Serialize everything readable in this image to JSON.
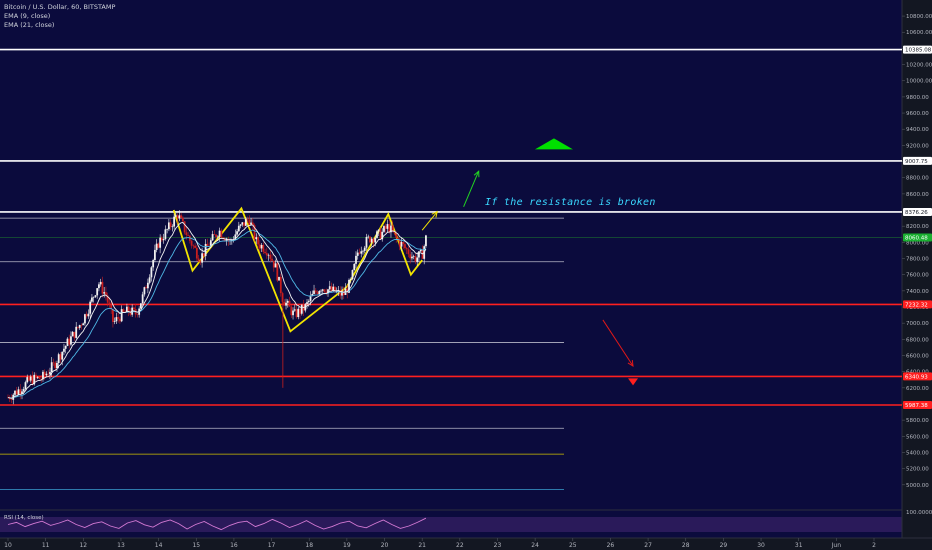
{
  "header": {
    "symbol": "Bitcoin / U.S. Dollar, 60, BITSTAMP",
    "ema1": "EMA (9, close)",
    "ema2": "EMA (21, close)"
  },
  "annotation": "If the resistance is broken",
  "rsi_label": "RSI (14, close)",
  "colors": {
    "background": "#131722",
    "plot": "#0b0b3d",
    "up": "#f0f0f0",
    "down": "#c81e1e",
    "ema9": "#f3f3f3",
    "ema21": "#4fb8e6",
    "pattern": "#f2e400",
    "support": "#ff1f1f",
    "resistance": "#ffffff",
    "green_arrow": "#00e000",
    "rsi_line": "#d47ad4",
    "rsi_panel": "#2a1a5a"
  },
  "chart_data": {
    "type": "candlestick",
    "title": "Bitcoin / U.S. Dollar, 60, BITSTAMP",
    "ylim": [
      4750,
      10900
    ],
    "y_ticks": [
      5000,
      5200,
      5400,
      5600,
      5800,
      6000,
      6200,
      6400,
      6600,
      6800,
      7000,
      7200,
      7400,
      7600,
      7800,
      8000,
      8200,
      8400,
      8600,
      8800,
      9000,
      9200,
      9400,
      9600,
      9800,
      10000,
      10200,
      10400,
      10600,
      10800
    ],
    "y_tick_labels": [
      "5000.00",
      "5200.00",
      "5400.00",
      "5600.00",
      "5800.00",
      "6000.00",
      "6200.00",
      "6400.00",
      "6600.00",
      "6800.00",
      "7000.00",
      "7200.00",
      "7400.00",
      "7600.00",
      "7800.00",
      "8000.00",
      "8200.00",
      "8400.00",
      "8600.00",
      "8800.00",
      "9000.00",
      "9200.00",
      "9400.00",
      "9600.00",
      "9800.00",
      "10000.00",
      "10200.00",
      "10400.00",
      "10600.00",
      "10800.00"
    ],
    "x_ticks": [
      "10",
      "11",
      "12",
      "13",
      "14",
      "15",
      "16",
      "17",
      "18",
      "19",
      "20",
      "21",
      "22",
      "23",
      "24",
      "25",
      "26",
      "27",
      "28",
      "29",
      "30",
      "31",
      "Jun",
      "2"
    ],
    "x_day_range": [
      10,
      33
    ],
    "price_labels": [
      {
        "value": 10385.08,
        "text": "10385.08",
        "kind": "resistance"
      },
      {
        "value": 9007.75,
        "text": "9007.75",
        "kind": "resistance"
      },
      {
        "value": 8376.26,
        "text": "8376.26",
        "kind": "resistance"
      },
      {
        "value": 8060.48,
        "text": "8060.48",
        "kind": "current"
      },
      {
        "value": 7232.32,
        "text": "7232.32",
        "kind": "support"
      },
      {
        "value": 6340.93,
        "text": "6340.93",
        "kind": "support"
      },
      {
        "value": 5987.38,
        "text": "5987.38",
        "kind": "support"
      }
    ],
    "thin_levels": [
      8300,
      7760,
      6760,
      5700,
      5380,
      4940
    ],
    "close_path": [
      [
        10.0,
        6080
      ],
      [
        10.3,
        6180
      ],
      [
        10.6,
        6300
      ],
      [
        10.9,
        6320
      ],
      [
        11.2,
        6470
      ],
      [
        11.5,
        6700
      ],
      [
        11.8,
        6900
      ],
      [
        12.0,
        7050
      ],
      [
        12.2,
        7250
      ],
      [
        12.4,
        7500
      ],
      [
        12.6,
        7350
      ],
      [
        12.8,
        7000
      ],
      [
        13.0,
        7100
      ],
      [
        13.2,
        7150
      ],
      [
        13.4,
        7120
      ],
      [
        13.6,
        7350
      ],
      [
        13.8,
        7700
      ],
      [
        14.0,
        8000
      ],
      [
        14.3,
        8200
      ],
      [
        14.5,
        8350
      ],
      [
        14.8,
        8050
      ],
      [
        15.1,
        7800
      ],
      [
        15.3,
        7950
      ],
      [
        15.6,
        8150
      ],
      [
        15.9,
        8000
      ],
      [
        16.1,
        8150
      ],
      [
        16.4,
        8300
      ],
      [
        16.6,
        8000
      ],
      [
        16.9,
        7900
      ],
      [
        17.1,
        7700
      ],
      [
        17.3,
        7300
      ],
      [
        17.6,
        7100
      ],
      [
        17.9,
        7200
      ],
      [
        18.1,
        7350
      ],
      [
        18.3,
        7450
      ],
      [
        18.6,
        7400
      ],
      [
        18.9,
        7350
      ],
      [
        19.1,
        7500
      ],
      [
        19.3,
        7900
      ],
      [
        19.6,
        8050
      ],
      [
        19.9,
        8100
      ],
      [
        20.1,
        8200
      ],
      [
        20.3,
        8050
      ],
      [
        20.6,
        7900
      ],
      [
        20.8,
        7800
      ],
      [
        21.0,
        7850
      ],
      [
        21.1,
        8050
      ]
    ],
    "pattern_points": [
      [
        14.4,
        8400
      ],
      [
        14.9,
        7650
      ],
      [
        16.2,
        8420
      ],
      [
        17.5,
        6900
      ],
      [
        19.0,
        7450
      ],
      [
        20.1,
        8350
      ],
      [
        20.7,
        7600
      ],
      [
        21.0,
        7780
      ]
    ],
    "annotation_arrows": [
      {
        "from": [
          21.0,
          8150
        ],
        "to": [
          21.4,
          8380
        ],
        "color": "yellow"
      },
      {
        "from": [
          22.1,
          8440
        ],
        "to": [
          22.5,
          8880
        ],
        "color": "green"
      },
      {
        "from": [
          25.8,
          7040
        ],
        "to": [
          26.6,
          6470
        ],
        "color": "red"
      }
    ],
    "markers": [
      {
        "kind": "triangle-up",
        "x": 24.5,
        "y": 9200,
        "color": "green"
      },
      {
        "kind": "triangle-down",
        "x": 26.6,
        "y": 6280,
        "color": "red"
      }
    ],
    "rsi": {
      "label": "RSI (14, close)",
      "ylim": [
        0,
        100
      ],
      "ticks": [
        100
      ],
      "values": [
        55,
        62,
        48,
        58,
        66,
        52,
        60,
        70,
        55,
        45,
        58,
        64,
        50,
        42,
        60,
        68,
        54,
        46,
        62,
        70,
        58,
        40,
        55,
        65,
        50,
        38,
        52,
        62,
        66,
        48,
        58,
        72,
        60,
        45,
        55,
        68,
        52,
        40,
        48,
        60,
        66,
        50,
        44,
        58,
        70,
        55,
        42,
        50,
        62,
        76
      ]
    }
  }
}
